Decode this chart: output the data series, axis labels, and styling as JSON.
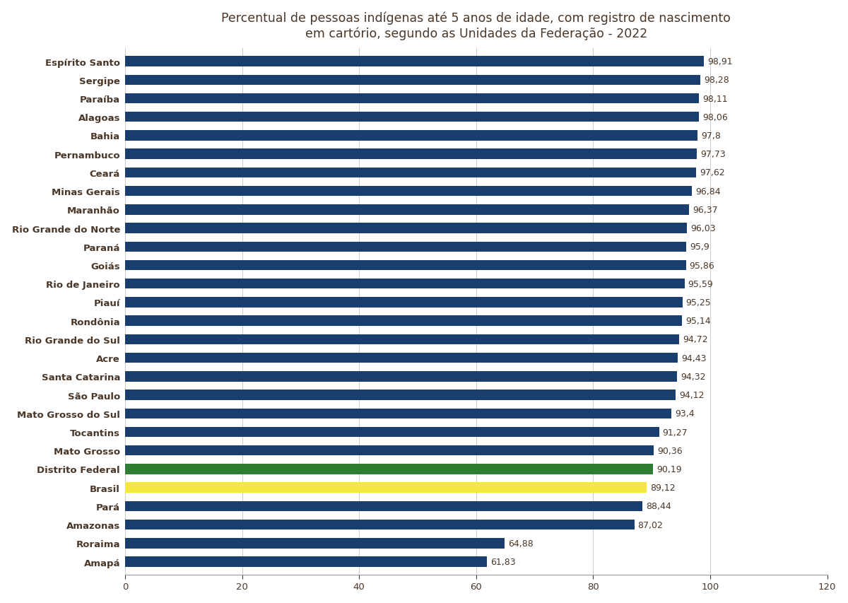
{
  "title": "Percentual de pessoas indígenas até 5 anos de idade, com registro de nascimento\nem cartório, segundo as Unidades da Federação - 2022",
  "categories": [
    "Espírito Santo",
    "Sergipe",
    "Paraíba",
    "Alagoas",
    "Bahia",
    "Pernambuco",
    "Ceará",
    "Minas Gerais",
    "Maranhão",
    "Rio Grande do Norte",
    "Paraná",
    "Goiás",
    "Rio de Janeiro",
    "Piauí",
    "Rondônia",
    "Rio Grande do Sul",
    "Acre",
    "Santa Catarina",
    "São Paulo",
    "Mato Grosso do Sul",
    "Tocantins",
    "Mato Grosso",
    "Distrito Federal",
    "Brasil",
    "Pará",
    "Amazonas",
    "Roraima",
    "Amapá"
  ],
  "values": [
    98.91,
    98.28,
    98.11,
    98.06,
    97.8,
    97.73,
    97.62,
    96.84,
    96.37,
    96.03,
    95.9,
    95.86,
    95.59,
    95.25,
    95.14,
    94.72,
    94.43,
    94.32,
    94.12,
    93.4,
    91.27,
    90.36,
    90.19,
    89.12,
    88.44,
    87.02,
    64.88,
    61.83
  ],
  "bar_colors": [
    "#1a3f6f",
    "#1a3f6f",
    "#1a3f6f",
    "#1a3f6f",
    "#1a3f6f",
    "#1a3f6f",
    "#1a3f6f",
    "#1a3f6f",
    "#1a3f6f",
    "#1a3f6f",
    "#1a3f6f",
    "#1a3f6f",
    "#1a3f6f",
    "#1a3f6f",
    "#1a3f6f",
    "#1a3f6f",
    "#1a3f6f",
    "#1a3f6f",
    "#1a3f6f",
    "#1a3f6f",
    "#1a3f6f",
    "#1a3f6f",
    "#2e7d32",
    "#f5e642",
    "#1a3f6f",
    "#1a3f6f",
    "#1a3f6f",
    "#1a3f6f"
  ],
  "label_color": "#4a3728",
  "value_label_color": "#4a3728",
  "xlim": [
    0,
    120
  ],
  "xticks": [
    0,
    20,
    40,
    60,
    80,
    100,
    120
  ],
  "background_color": "#ffffff",
  "title_fontsize": 12.5,
  "tick_fontsize": 9.5,
  "value_label_fontsize": 9.0,
  "bar_height": 0.55
}
